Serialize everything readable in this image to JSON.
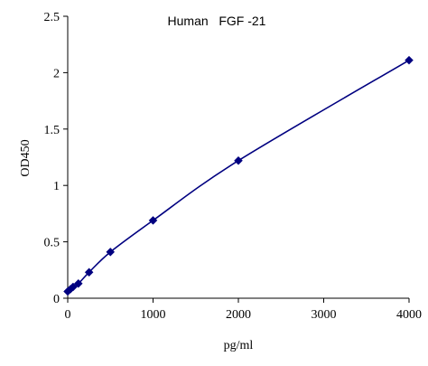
{
  "chart_data": {
    "type": "line",
    "title": "Human   FGF -21",
    "xlabel": "pg/ml",
    "ylabel": "OD450",
    "xlim": [
      0,
      4000
    ],
    "ylim": [
      0,
      2.5
    ],
    "x_ticks": [
      0,
      1000,
      2000,
      3000,
      4000
    ],
    "x_tick_labels": [
      "0",
      "1000",
      "2000",
      "3000",
      "4000"
    ],
    "y_ticks": [
      0,
      0.5,
      1,
      1.5,
      2,
      2.5
    ],
    "y_tick_labels": [
      "0",
      "0.5",
      "1",
      "1.5",
      "2",
      "2.5"
    ],
    "grid": false,
    "legend": "none",
    "series": [
      {
        "x": [
          0,
          31.25,
          62.5,
          125,
          250,
          500,
          1000,
          2000,
          4000
        ],
        "y": [
          0.06,
          0.08,
          0.1,
          0.13,
          0.23,
          0.41,
          0.69,
          1.22,
          2.11
        ],
        "color": "#000080",
        "marker": "diamond"
      }
    ]
  }
}
